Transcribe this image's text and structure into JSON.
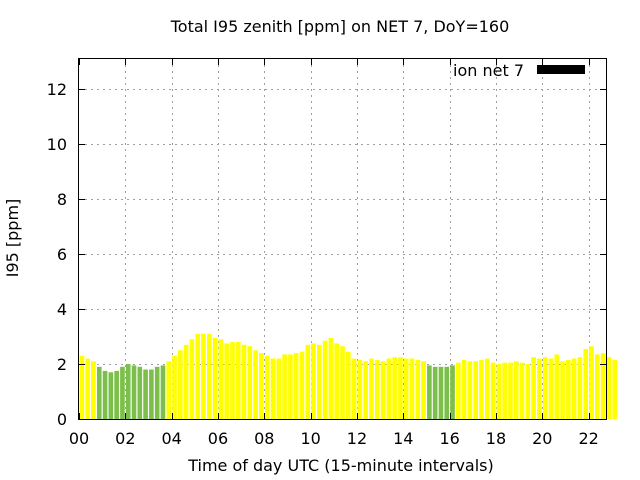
{
  "chart_data": {
    "type": "bar",
    "title": "Total I95 zenith [ppm] on NET 7, DoY=160",
    "xlabel": "Time of day UTC (15-minute intervals)",
    "ylabel": "I95 [ppm]",
    "ylim": [
      0,
      13.1
    ],
    "yticks": [
      0,
      2,
      4,
      6,
      8,
      10,
      12
    ],
    "xlim": [
      0,
      22.75
    ],
    "xticks": [
      0,
      2,
      4,
      6,
      8,
      10,
      12,
      14,
      16,
      18,
      20,
      22
    ],
    "xtick_labels": [
      "00",
      "02",
      "04",
      "06",
      "08",
      "10",
      "12",
      "14",
      "16",
      "18",
      "20",
      "22"
    ],
    "grid": true,
    "legend": {
      "label": "ion net 7",
      "color": "#000000",
      "position": "top-right"
    },
    "interval_hours": 0.25,
    "colors": {
      "yellow": "#ffff00",
      "green": "#7cc04b"
    },
    "series": [
      {
        "name": "ion net 7",
        "start_time": "00:00",
        "values": [
          2.3,
          2.2,
          2.1,
          1.9,
          1.75,
          1.7,
          1.75,
          1.9,
          2.0,
          1.95,
          1.9,
          1.8,
          1.8,
          1.9,
          1.95,
          2.1,
          2.3,
          2.5,
          2.7,
          2.9,
          3.1,
          3.1,
          3.1,
          2.95,
          2.9,
          2.75,
          2.8,
          2.8,
          2.7,
          2.65,
          2.5,
          2.4,
          2.3,
          2.2,
          2.2,
          2.35,
          2.35,
          2.4,
          2.45,
          2.7,
          2.75,
          2.7,
          2.85,
          2.95,
          2.75,
          2.65,
          2.45,
          2.2,
          2.15,
          2.1,
          2.2,
          2.15,
          2.1,
          2.2,
          2.25,
          2.25,
          2.2,
          2.2,
          2.15,
          2.1,
          1.95,
          1.9,
          1.9,
          1.9,
          1.95,
          2.05,
          2.15,
          2.1,
          2.1,
          2.15,
          2.2,
          2.05,
          2.0,
          2.05,
          2.05,
          2.1,
          2.05,
          2.0,
          2.25,
          2.2,
          2.25,
          2.2,
          2.35,
          2.1,
          2.15,
          2.2,
          2.25,
          2.55,
          2.65,
          2.35,
          2.4,
          2.25,
          2.15
        ],
        "colors": [
          "yellow",
          "yellow",
          "yellow",
          "green",
          "green",
          "green",
          "green",
          "green",
          "green",
          "green",
          "green",
          "green",
          "green",
          "green",
          "green",
          "yellow",
          "yellow",
          "yellow",
          "yellow",
          "yellow",
          "yellow",
          "yellow",
          "yellow",
          "yellow",
          "yellow",
          "yellow",
          "yellow",
          "yellow",
          "yellow",
          "yellow",
          "yellow",
          "yellow",
          "yellow",
          "yellow",
          "yellow",
          "yellow",
          "yellow",
          "yellow",
          "yellow",
          "yellow",
          "yellow",
          "yellow",
          "yellow",
          "yellow",
          "yellow",
          "yellow",
          "yellow",
          "yellow",
          "yellow",
          "yellow",
          "yellow",
          "yellow",
          "yellow",
          "yellow",
          "yellow",
          "yellow",
          "yellow",
          "yellow",
          "yellow",
          "yellow",
          "green",
          "green",
          "green",
          "green",
          "green",
          "yellow",
          "yellow",
          "yellow",
          "yellow",
          "yellow",
          "yellow",
          "yellow",
          "yellow",
          "yellow",
          "yellow",
          "yellow",
          "yellow",
          "yellow",
          "yellow",
          "yellow",
          "yellow",
          "yellow",
          "yellow",
          "yellow",
          "yellow",
          "yellow",
          "yellow",
          "yellow",
          "yellow",
          "yellow",
          "yellow",
          "yellow",
          "yellow"
        ]
      }
    ]
  }
}
